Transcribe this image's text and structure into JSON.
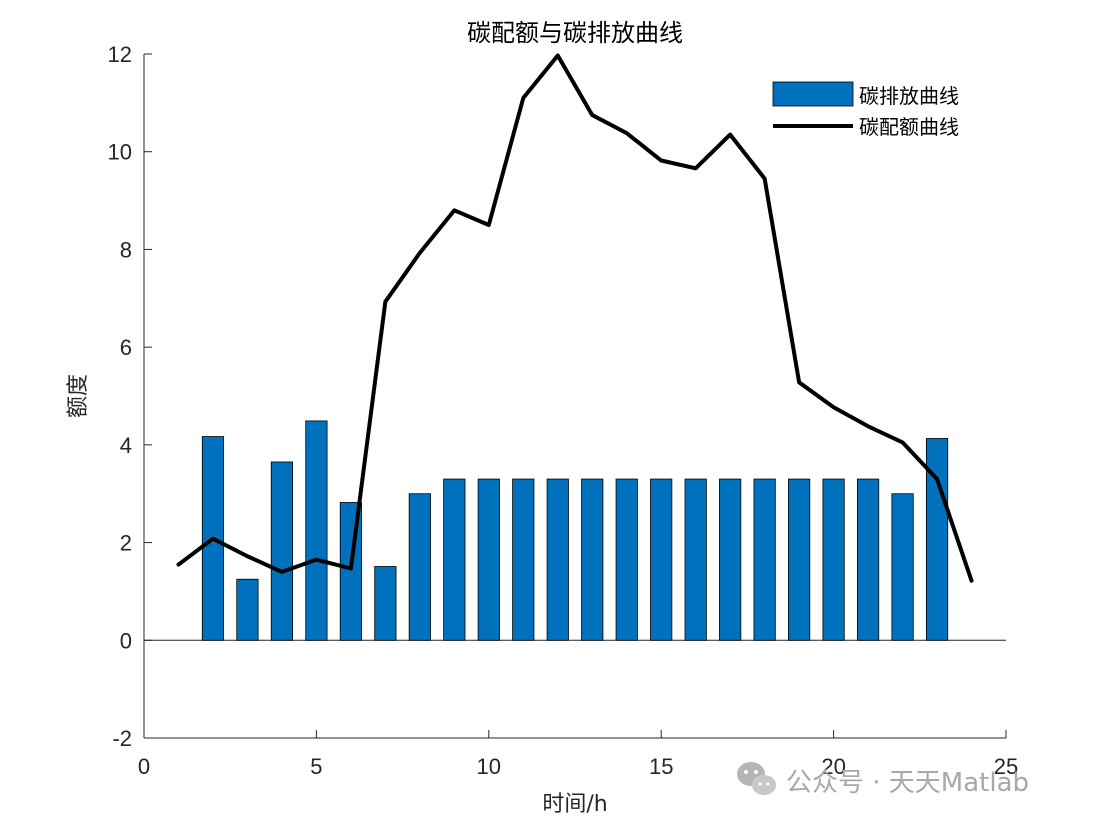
{
  "chart_data": {
    "type": "bar",
    "title": "碳配额与碳排放曲线",
    "xlabel": "时间/h",
    "ylabel": "额度",
    "xlim": [
      0,
      25
    ],
    "ylim": [
      -2,
      12
    ],
    "xticks": [
      0,
      5,
      10,
      15,
      20,
      25
    ],
    "yticks": [
      -2,
      0,
      2,
      4,
      6,
      8,
      10,
      12
    ],
    "legend_position": "top-right",
    "grid": false,
    "bar_color": "#0072BD",
    "line_color": "#000000",
    "series": [
      {
        "name": "碳排放曲线",
        "kind": "bar",
        "x": [
          1,
          2,
          3,
          4,
          5,
          6,
          7,
          8,
          9,
          10,
          11,
          12,
          13,
          14,
          15,
          16,
          17,
          18,
          19,
          20,
          21,
          22,
          23,
          24
        ],
        "values": [
          0,
          4.17,
          1.25,
          3.65,
          4.49,
          2.82,
          1.51,
          3.0,
          3.3,
          3.3,
          3.3,
          3.3,
          3.3,
          3.3,
          3.3,
          3.3,
          3.3,
          3.3,
          3.3,
          3.3,
          3.3,
          3.0,
          4.13,
          0
        ]
      },
      {
        "name": "碳配额曲线",
        "kind": "line",
        "x": [
          1,
          2,
          3,
          4,
          5,
          6,
          7,
          8,
          9,
          10,
          11,
          12,
          13,
          14,
          15,
          16,
          17,
          18,
          19,
          20,
          21,
          22,
          23,
          24
        ],
        "values": [
          1.55,
          2.08,
          1.72,
          1.4,
          1.65,
          1.47,
          6.93,
          7.93,
          8.8,
          8.5,
          11.1,
          11.97,
          10.75,
          10.38,
          9.82,
          9.66,
          10.35,
          9.45,
          5.28,
          4.77,
          4.38,
          4.05,
          3.3,
          1.22
        ]
      }
    ]
  },
  "watermark": "公众号 · 天天Matlab"
}
